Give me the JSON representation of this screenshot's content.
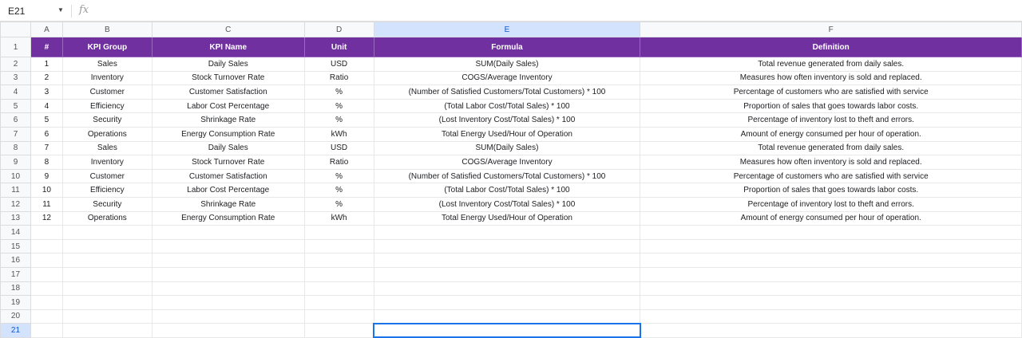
{
  "name_box": "E21",
  "formula_icon": "fx",
  "columns": [
    "A",
    "B",
    "C",
    "D",
    "E",
    "F"
  ],
  "selected_column": "E",
  "header": [
    "#",
    "KPI Group",
    "KPI Name",
    "Unit",
    "Formula",
    "Definition"
  ],
  "rows": [
    [
      "1",
      "Sales",
      "Daily Sales",
      "USD",
      "SUM(Daily Sales)",
      "Total revenue generated from daily sales."
    ],
    [
      "2",
      "Inventory",
      "Stock Turnover Rate",
      "Ratio",
      "COGS/Average Inventory",
      "Measures how often inventory is sold and replaced."
    ],
    [
      "3",
      "Customer",
      "Customer Satisfaction",
      "%",
      "(Number of Satisfied Customers/Total Customers) * 100",
      "Percentage of customers who are satisfied with service"
    ],
    [
      "4",
      "Efficiency",
      "Labor Cost Percentage",
      "%",
      "(Total Labor Cost/Total Sales) * 100",
      "Proportion of sales that goes towards labor costs."
    ],
    [
      "5",
      "Security",
      "Shrinkage Rate",
      "%",
      "(Lost Inventory Cost/Total Sales) * 100",
      "Percentage of inventory lost to theft and errors."
    ],
    [
      "6",
      "Operations",
      "Energy Consumption Rate",
      "kWh",
      "Total Energy Used/Hour of Operation",
      "Amount of energy consumed per hour of operation."
    ],
    [
      "7",
      "Sales",
      "Daily Sales",
      "USD",
      "SUM(Daily Sales)",
      "Total revenue generated from daily sales."
    ],
    [
      "8",
      "Inventory",
      "Stock Turnover Rate",
      "Ratio",
      "COGS/Average Inventory",
      "Measures how often inventory is sold and replaced."
    ],
    [
      "9",
      "Customer",
      "Customer Satisfaction",
      "%",
      "(Number of Satisfied Customers/Total Customers) * 100",
      "Percentage of customers who are satisfied with service"
    ],
    [
      "10",
      "Efficiency",
      "Labor Cost Percentage",
      "%",
      "(Total Labor Cost/Total Sales) * 100",
      "Proportion of sales that goes towards labor costs."
    ],
    [
      "11",
      "Security",
      "Shrinkage Rate",
      "%",
      "(Lost Inventory Cost/Total Sales) * 100",
      "Percentage of inventory lost to theft and errors."
    ],
    [
      "12",
      "Operations",
      "Energy Consumption Rate",
      "kWh",
      "Total Energy Used/Hour of Operation",
      "Amount of energy consumed per hour of operation."
    ]
  ],
  "row_numbers": [
    "1",
    "2",
    "3",
    "4",
    "5",
    "6",
    "7",
    "8",
    "9",
    "10",
    "11",
    "12",
    "13",
    "14",
    "15",
    "16",
    "17",
    "18",
    "19",
    "20",
    "21"
  ],
  "header_color": "#7030a0"
}
